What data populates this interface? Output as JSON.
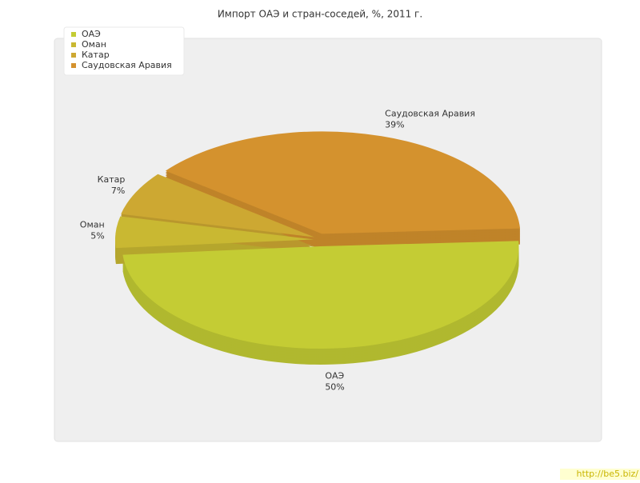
{
  "chart_data": {
    "type": "pie",
    "title": "Импорт ОАЭ и стран-соседей, %, 2011 г.",
    "categories": [
      "ОАЭ",
      "Оман",
      "Катар",
      "Саудовская Аравия"
    ],
    "values": [
      50,
      5,
      7,
      39
    ],
    "value_labels": [
      "50%",
      "5%",
      "7%",
      "39%"
    ],
    "colors": [
      "#c4cc34",
      "#c9b832",
      "#cda832",
      "#d4922e"
    ],
    "legend": "top-left"
  },
  "watermark": "http://be5.biz/"
}
